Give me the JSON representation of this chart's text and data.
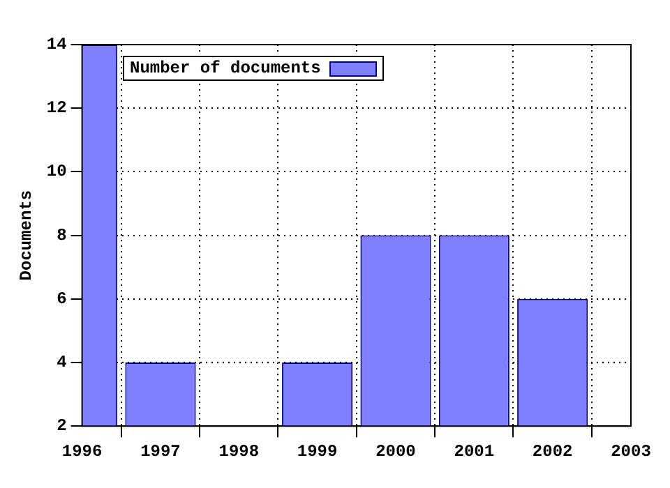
{
  "chart_data": {
    "type": "bar",
    "ylabel": "Documents",
    "x": [
      1996,
      1997,
      1998,
      1999,
      2000,
      2001,
      2002
    ],
    "series": [
      {
        "name": "Number of documents",
        "color": "#8080ff",
        "values": [
          14,
          4,
          null,
          4,
          8,
          8,
          6
        ]
      }
    ],
    "xlim": [
      1996,
      2003
    ],
    "xticks": [
      1996,
      1997,
      1998,
      1999,
      2000,
      2001,
      2002,
      2003
    ],
    "ylim": [
      2,
      14
    ],
    "yticks": [
      2,
      4,
      6,
      8,
      10,
      12,
      14
    ],
    "grid": true,
    "legend": "top left"
  }
}
